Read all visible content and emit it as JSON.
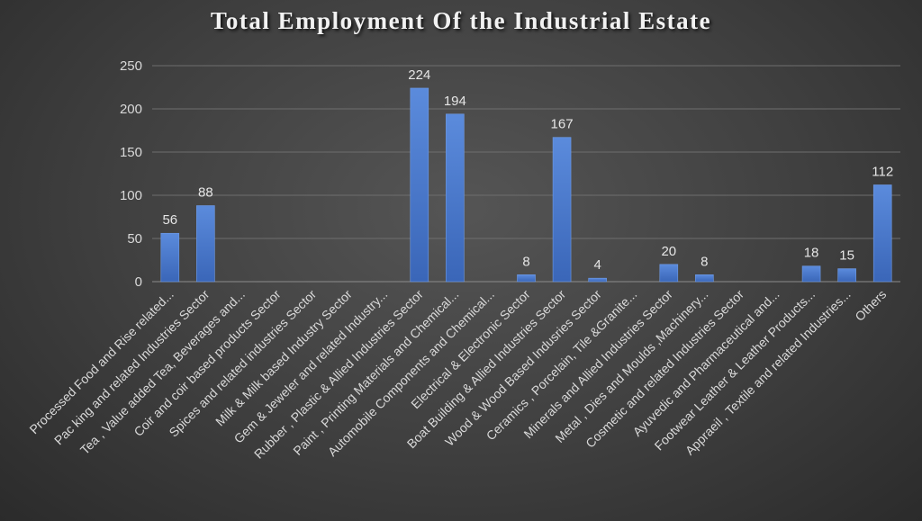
{
  "chart_data": {
    "type": "bar",
    "title": "Total Employment Of the Industrial Estate",
    "xlabel": "",
    "ylabel": "",
    "ylim": [
      0,
      250
    ],
    "yticks": [
      0,
      50,
      100,
      150,
      200,
      250
    ],
    "grid": true,
    "legend": "none",
    "bar_color": "#4472c4",
    "categories": [
      "Processed  Food and Rise related...",
      "Pac king and  related Industries Sector",
      "Tea , Value added Tea, Beverages and...",
      "Coir and coir based products Sector",
      "Spices and related industries Sector",
      "Milk & Milk based Industry Sector",
      "Gem & Jeweler and related Industry...",
      "Rubber , Plastic & Allied Industries Sector",
      "Paint , Printing Materials and Chemical...",
      "Automobile Components and Chemical...",
      "Electrical & Electronic Sector",
      "Boat Building & Allied Industries Sector",
      "Wood & Wood Based Indusries Sector",
      "Ceramics , Porcelain, Tile &Granite...",
      "Minerals and Allied Industries Sector",
      "Metal , Dies and Moulds ,Machinery...",
      "Cosmetic and related Industries Sector",
      "Ayuvedic and Pharmaceutical and...",
      "Footwear Leather & Leather Products...",
      "Appraeil , Textile and related Industries...",
      "Others"
    ],
    "values": [
      56,
      88,
      null,
      null,
      null,
      null,
      null,
      224,
      194,
      null,
      8,
      167,
      4,
      null,
      20,
      8,
      null,
      null,
      18,
      15,
      112
    ]
  }
}
